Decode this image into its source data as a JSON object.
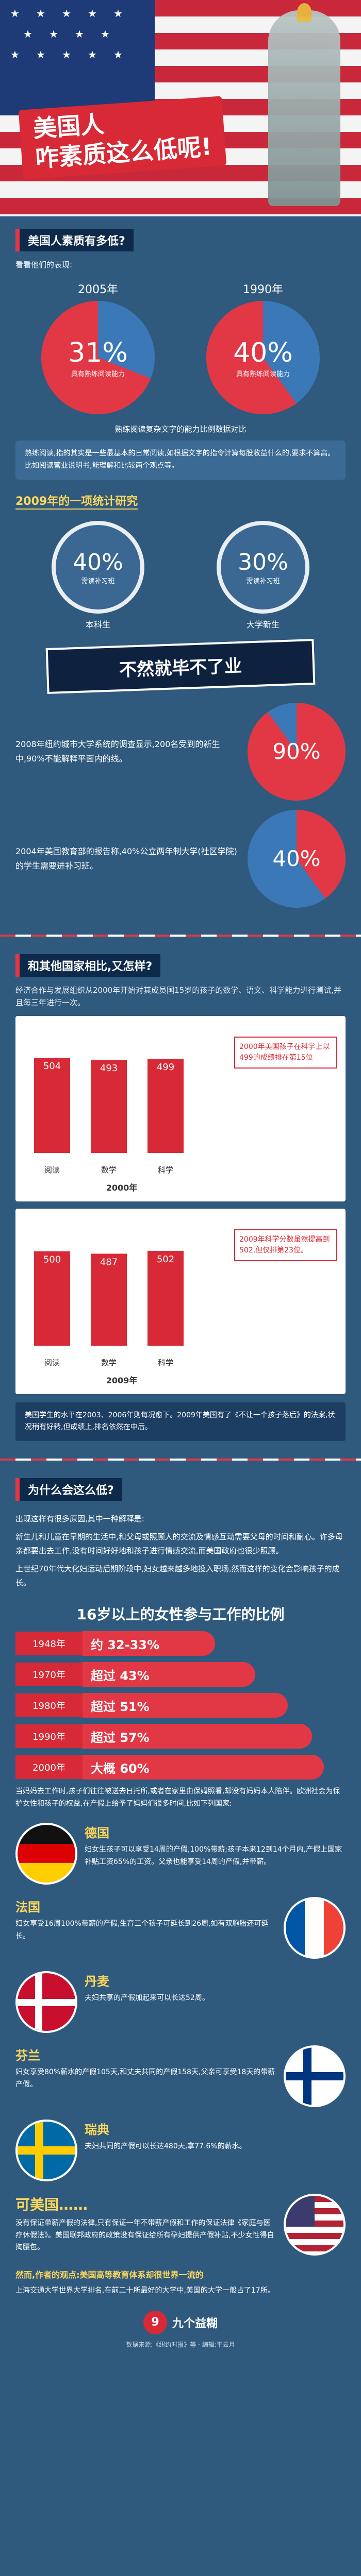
{
  "hero": {
    "title_line1": "美国人",
    "title_line2": "咋素质这么低呢!"
  },
  "q1": {
    "title": "美国人素质有多低?",
    "intro": "看看他们的表现:",
    "pies": [
      {
        "year": "2005年",
        "pct": "31%",
        "label": "具有熟练阅读能力"
      },
      {
        "year": "1990年",
        "pct": "40%",
        "label": "具有熟练阅读能力"
      }
    ],
    "pie_caption": "熟练阅读复杂文字的能力比例数据对比",
    "note": "熟练阅读,指的其实是一些最基本的日常阅读,如根据文字的指令计算每股收益什么的,要求不算高。比如阅读营业说明书,能理解和比较两个观点等。"
  },
  "survey": {
    "head": "2009年的一项统计研究",
    "grades": [
      {
        "pct": "40%",
        "label": "需读补习班",
        "group": "本科生"
      },
      {
        "pct": "30%",
        "label": "需读补习班",
        "group": "大学新生"
      }
    ],
    "banner": "不然就毕不了业",
    "nyc_text": "2008年纽约城市大学系统的调查显示,200名受到的新生中,90%不能解释平面内的线。",
    "nyc_pct": "90%",
    "cc_text": "2004年美国教育部的报告称,40%公立两年制大学(社区学院)的学生需要进补习班。",
    "cc_pct": "40%"
  },
  "q2": {
    "title": "和其他国家相比,又怎样?",
    "intro": "经济合作与发展组织从2000年开始对其成员国15岁的孩子的数学、语文、科学能力进行测试,并且每三年进行一次。",
    "chart_2000": {
      "categories": [
        "阅读",
        "数学",
        "科学"
      ],
      "values": [
        504,
        493,
        499
      ],
      "year_label": "2000年",
      "note": "2000年美国孩子在科学上以499的成绩排在第15位"
    },
    "chart_2009": {
      "categories": [
        "阅读",
        "数学",
        "科学"
      ],
      "values": [
        500,
        487,
        502
      ],
      "year_label": "2009年",
      "note": "2009年科学分数虽然提高到502,但仅排第23位。"
    },
    "footnote": "美国学生的水平在2003、2006年则每况愈下。2009年美国有了《不让一个孩子落后》的法案,状况稍有好转,但成绩上,排名依然在中后。"
  },
  "q3": {
    "title": "为什么会这么低?",
    "text1": "出现这样有很多原因,其中一种解释是:",
    "text2": "新生儿和儿童在早期的生活中,和父母或照顾人的交流及情感互动需要父母的时间和耐心。许多母亲都要出去工作,没有时间好好地和孩子进行情感交流,而美国政府也很少照顾。",
    "text3": "上世纪70年代大化妇运动后期阶段中,妇女越来越多地投入职场,然而这样的变化会影响孩子的成长。",
    "women_title": "16岁以上的女性参与工作的比例",
    "women": [
      {
        "year": "1948年",
        "value": "约 32-33%",
        "ratio": 0.33
      },
      {
        "year": "1970年",
        "value": "超过 43%",
        "ratio": 0.43
      },
      {
        "year": "1980年",
        "value": "超过 51%",
        "ratio": 0.51
      },
      {
        "year": "1990年",
        "value": "超过 57%",
        "ratio": 0.57
      },
      {
        "year": "2000年",
        "value": "大概 60%",
        "ratio": 0.6
      }
    ],
    "women_desc": "当妈妈去工作时,孩子们往往被送去日托所,或者在家里由保姆照看,却没有妈妈本人陪伴。欧洲社会为保护女性和孩子的权益,在产假上给予了妈妈们很多时间,比如下列国家:"
  },
  "countries": [
    {
      "name": "德国",
      "text": "妇女生孩子可以享受14周的产假,100%带薪;孩子本来12到14个月内,产假上国家补贴工资65%的工资。父亲也能享受14周的产假,并带薪。",
      "flag": "de"
    },
    {
      "name": "法国",
      "text": "妇女享受16周100%带薪的产假,生育三个孩子可延长到26周,如有双胞胎还可延长。",
      "flag": "fr"
    },
    {
      "name": "丹麦",
      "text": "夫妇共享的产假加起来可以长达52周。",
      "flag": "dk"
    },
    {
      "name": "芬兰",
      "text": "妇女享受80%薪水的产假105天,和丈夫共同的产假158天,父亲可享受18天的带薪产假。",
      "flag": "fi"
    },
    {
      "name": "瑞典",
      "text": "夫妇共同的产假可以长达480天,拿77.6%的薪水。",
      "flag": "se"
    }
  ],
  "pity": {
    "title": "可美国……",
    "text": "没有保证带薪产假的法律,只有保证一年不带薪产假和工作的保证法律《家庭与医疗休假法》。美国联邦政府的政策没有保证给所有孕妇提供产假补贴,不少女性得自掏腰包。",
    "finally": "然而,作者的观点:美国高等教育体系却很世界一流的",
    "text2": "上海交通大学世界大学排名,在前二十所最好的大学中,美国的大学一般占了17所。"
  },
  "footer": {
    "logo_name": "九个益糊",
    "credits": "数据来源:《纽约时报》等 · 编辑:平云月"
  },
  "colors": {
    "accent": "#d72a36",
    "bg": "#2f5a7e",
    "highlight": "#ffd75a"
  }
}
